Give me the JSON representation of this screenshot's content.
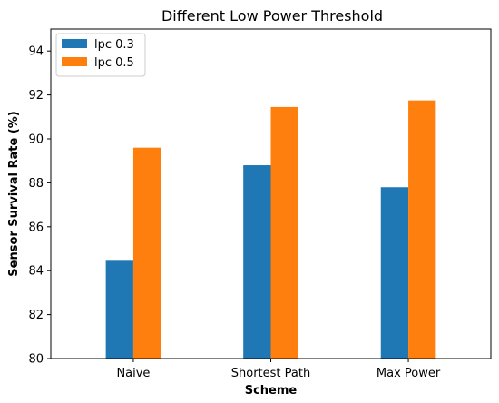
{
  "chart_data": {
    "type": "bar",
    "title": "Different Low Power Threshold",
    "xlabel": "Scheme",
    "ylabel": "Sensor Survival Rate (%)",
    "categories": [
      "Naive",
      "Shortest Path",
      "Max Power"
    ],
    "series": [
      {
        "name": "lpc 0.3",
        "color": "#1f77b4",
        "values": [
          84.45,
          88.8,
          87.8
        ]
      },
      {
        "name": "lpc 0.5",
        "color": "#ff7f0e",
        "values": [
          89.6,
          91.45,
          91.75
        ]
      }
    ],
    "ylim": [
      80,
      95
    ],
    "yticks": [
      80,
      82,
      84,
      86,
      88,
      90,
      92,
      94
    ],
    "grid": false,
    "legend_position": "top-left"
  }
}
